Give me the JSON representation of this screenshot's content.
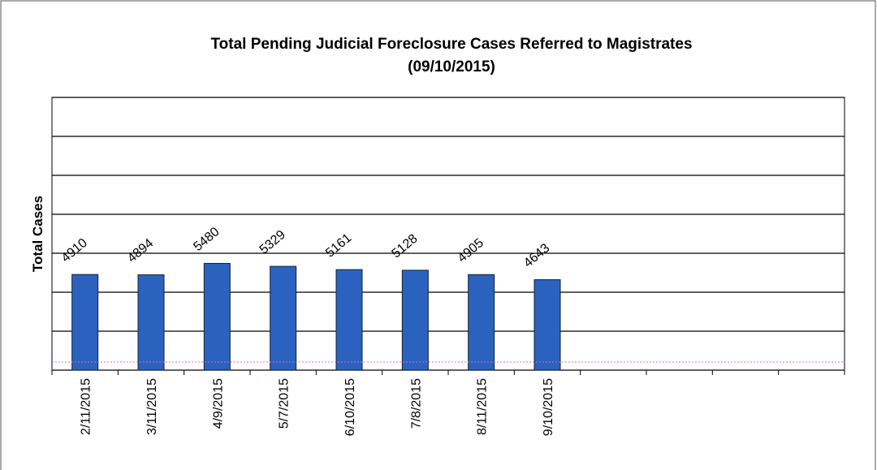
{
  "chart_data": {
    "type": "bar",
    "title": "Total Pending Judicial Foreclosure Cases Referred to Magistrates",
    "subtitle": "(09/10/2015)",
    "y_label": "Total Cases",
    "categories": [
      "2/11/2015",
      "3/11/2015",
      "4/9/2015",
      "5/7/2015",
      "6/10/2015",
      "7/8/2015",
      "8/11/2015",
      "9/10/2015",
      null,
      null,
      null,
      null
    ],
    "values": [
      4910,
      4894,
      5480,
      5329,
      5161,
      5128,
      4905,
      4643,
      null,
      null,
      null,
      null
    ],
    "color": "#2b62c0",
    "ylim": [
      0,
      14000
    ],
    "yticks": [
      0,
      2000,
      4000,
      6000,
      8000,
      10000,
      12000,
      14000
    ],
    "grid": true
  }
}
